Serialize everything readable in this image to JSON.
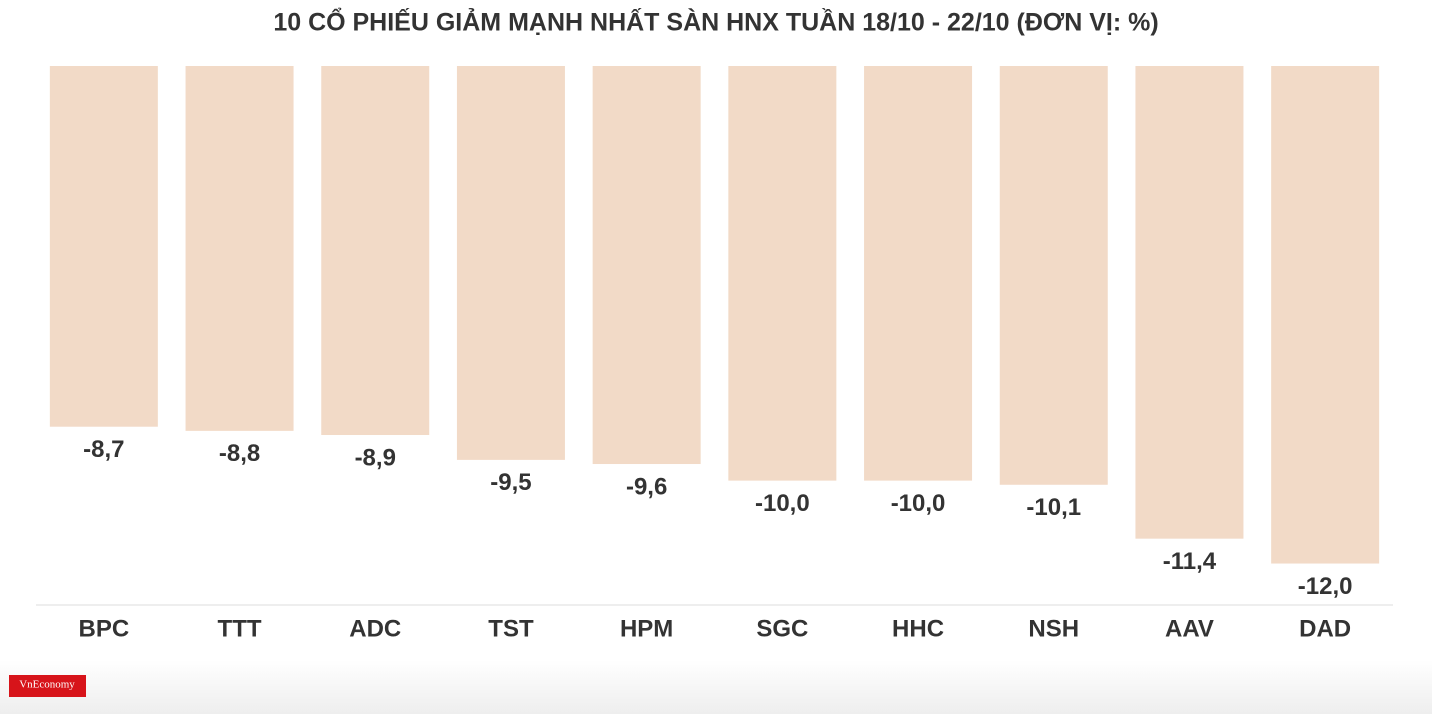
{
  "chart_data": {
    "type": "bar",
    "title": "10 CỔ PHIẾU GIẢM MẠNH NHẤT SÀN HNX TUẦN 18/10 - 22/10 (ĐƠN VỊ: %)",
    "categories": [
      "BPC",
      "TTT",
      "ADC",
      "TST",
      "HPM",
      "SGC",
      "HHC",
      "NSH",
      "AAV",
      "DAD"
    ],
    "values": [
      -8.7,
      -8.8,
      -8.9,
      -9.5,
      -9.6,
      -10.0,
      -10.0,
      -10.1,
      -11.4,
      -12.0
    ],
    "value_labels": [
      "-8,7",
      "-8,8",
      "-8,9",
      "-9,5",
      "-9,6",
      "-10,0",
      "-10,0",
      "-10,1",
      "-11,4",
      "-12,0"
    ],
    "color": "#f2dac7",
    "ylim": [
      -13,
      0
    ],
    "logo": "VnEconomy"
  }
}
